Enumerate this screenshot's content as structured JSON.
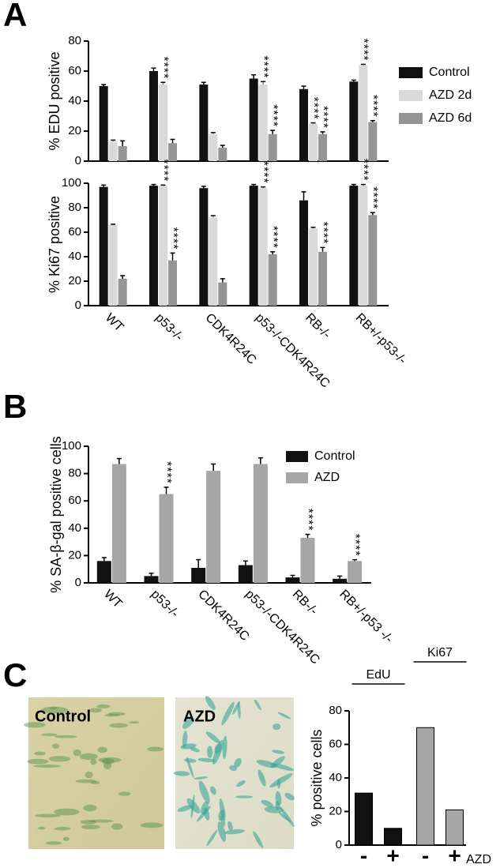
{
  "panel_labels": [
    "A",
    "B",
    "C"
  ],
  "images": [
    {
      "label": "Control"
    },
    {
      "label": "AZD"
    }
  ],
  "chart_data": [
    {
      "type": "bar",
      "categories": [
        "WT",
        "p53-/-",
        "CDK4R24C",
        "p53-/-CDK4R24C",
        "RB-/-",
        "RB+/-p53-/-"
      ],
      "legend": [
        {
          "name": "Control",
          "color": "#111111"
        },
        {
          "name": "AZD 2d",
          "color": "#d9d9d9"
        },
        {
          "name": "AZD 6d",
          "color": "#959595"
        }
      ],
      "plots": [
        {
          "ylabel": "% EDU positive",
          "ylim": [
            0,
            80
          ],
          "yticks": [
            0,
            20,
            40,
            60,
            80
          ],
          "series": [
            {
              "values": [
                50,
                60,
                51,
                55,
                48,
                53
              ],
              "errors": [
                1,
                2,
                1.5,
                2.5,
                2,
                1
              ],
              "annotations": [
                null,
                null,
                null,
                null,
                null,
                null
              ]
            },
            {
              "values": [
                13,
                51,
                18,
                51,
                25,
                64
              ],
              "errors": [
                1,
                1.5,
                1,
                2,
                0.5,
                0.5
              ],
              "annotations": [
                null,
                "****",
                null,
                "****",
                "****",
                "****"
              ]
            },
            {
              "values": [
                10,
                12,
                9,
                18,
                18,
                26
              ],
              "errors": [
                3.5,
                2.5,
                1.5,
                2.5,
                1.5,
                1
              ],
              "annotations": [
                null,
                null,
                null,
                "****",
                "****",
                "****"
              ]
            }
          ]
        },
        {
          "ylabel": "% Ki67 positive",
          "ylim": [
            0,
            100
          ],
          "yticks": [
            0,
            20,
            40,
            60,
            80,
            100
          ],
          "series": [
            {
              "values": [
                97,
                98,
                96,
                98,
                86,
                98
              ],
              "errors": [
                1.5,
                1,
                1.5,
                1,
                7,
                1
              ],
              "annotations": [
                null,
                null,
                null,
                null,
                null,
                null
              ]
            },
            {
              "values": [
                66,
                98,
                72,
                96,
                63,
                98
              ],
              "errors": [
                0.5,
                0.5,
                1.5,
                1,
                1,
                1
              ],
              "annotations": [
                null,
                "****",
                null,
                "****",
                null,
                "****"
              ]
            },
            {
              "values": [
                22,
                37,
                19,
                42,
                44,
                74
              ],
              "errors": [
                2.5,
                6,
                3,
                2,
                3.5,
                2
              ],
              "annotations": [
                null,
                "****",
                null,
                "****",
                "****",
                "****"
              ]
            }
          ]
        }
      ]
    },
    {
      "type": "bar",
      "categories": [
        "WT",
        "p53-/-",
        "CDK4R24C",
        "p53-/-CDK4R24C",
        "RB-/-",
        "RB+/-p53 -/-"
      ],
      "ylabel": "% SA-β-gal positive cells",
      "ylim": [
        0,
        100
      ],
      "yticks": [
        0,
        20,
        40,
        60,
        80,
        100
      ],
      "series": [
        {
          "name": "Control",
          "color": "#111111",
          "values": [
            16,
            5,
            11,
            13,
            4,
            3
          ],
          "errors": [
            2.5,
            2,
            6,
            3,
            1.5,
            2
          ],
          "annotations": [
            null,
            null,
            null,
            null,
            null,
            null
          ]
        },
        {
          "name": "AZD",
          "color": "#a6a6a6",
          "values": [
            87,
            65,
            82,
            87,
            33,
            16
          ],
          "errors": [
            4,
            5,
            5,
            4.5,
            2.5,
            1
          ],
          "annotations": [
            null,
            "****",
            null,
            null,
            "****",
            "****"
          ]
        }
      ]
    },
    {
      "type": "bar",
      "ylabel": "% positive cells",
      "ylim": [
        0,
        80
      ],
      "yticks": [
        0,
        20,
        40,
        60,
        80
      ],
      "categories": [
        "-",
        "+",
        "-",
        "+"
      ],
      "values": [
        31,
        10,
        70,
        21
      ],
      "colors": [
        "#111111",
        "#111111",
        "#a6a6a6",
        "#a6a6a6"
      ],
      "groups": [
        {
          "label": "EdU"
        },
        {
          "label": "Ki67"
        }
      ],
      "xlabel": "AZD"
    }
  ]
}
